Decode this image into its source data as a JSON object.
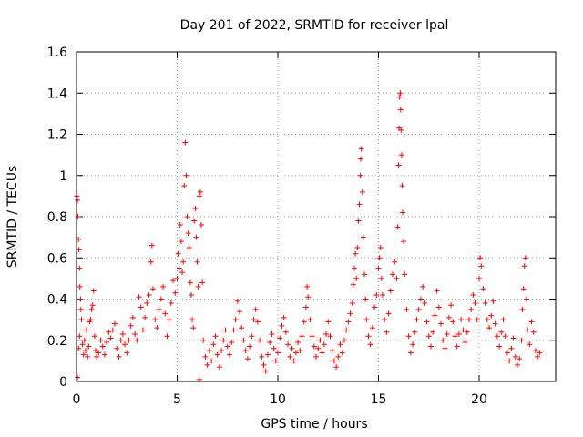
{
  "chart_data": {
    "type": "scatter",
    "title": "Day 201 of 2022, SRMTID for receiver lpal",
    "xlabel": "GPS time / hours",
    "ylabel": "SRMTID / TECUs",
    "xlim": [
      0,
      23.8
    ],
    "ylim": [
      0,
      1.6
    ],
    "xticks": [
      0,
      5,
      10,
      15,
      20
    ],
    "xtick_labels": [
      "0",
      "5",
      "10",
      "15",
      "20"
    ],
    "yticks": [
      0,
      0.2,
      0.4,
      0.6,
      0.8,
      1,
      1.2,
      1.4,
      1.6
    ],
    "ytick_labels": [
      "0",
      "0.2",
      "0.4",
      "0.6",
      "0.8",
      "1",
      "1.2",
      "1.4",
      "1.6"
    ],
    "grid": true,
    "marker": "+",
    "marker_color": "#ff0000",
    "series": [
      {
        "name": "SRMTID",
        "points": [
          [
            0.02,
            0.9
          ],
          [
            0.05,
            0.88
          ],
          [
            0.07,
            0.8
          ],
          [
            0.1,
            0.69
          ],
          [
            0.12,
            0.64
          ],
          [
            0.15,
            0.55
          ],
          [
            0.17,
            0.46
          ],
          [
            0.2,
            0.4
          ],
          [
            0.22,
            0.35
          ],
          [
            0.25,
            0.3
          ],
          [
            0.05,
            0.02
          ],
          [
            0.1,
            0.16
          ],
          [
            0.15,
            0.22
          ],
          [
            0.3,
            0.18
          ],
          [
            0.35,
            0.13
          ],
          [
            0.4,
            0.2
          ],
          [
            0.45,
            0.15
          ],
          [
            0.5,
            0.25
          ],
          [
            0.55,
            0.12
          ],
          [
            0.6,
            0.17
          ],
          [
            0.65,
            0.29
          ],
          [
            0.7,
            0.3
          ],
          [
            0.75,
            0.35
          ],
          [
            0.8,
            0.37
          ],
          [
            0.85,
            0.44
          ],
          [
            0.9,
            0.22
          ],
          [
            0.95,
            0.15
          ],
          [
            1.0,
            0.12
          ],
          [
            1.1,
            0.14
          ],
          [
            1.2,
            0.2
          ],
          [
            1.3,
            0.17
          ],
          [
            1.4,
            0.13
          ],
          [
            1.5,
            0.19
          ],
          [
            1.6,
            0.24
          ],
          [
            1.7,
            0.21
          ],
          [
            1.8,
            0.25
          ],
          [
            1.9,
            0.28
          ],
          [
            2.0,
            0.16
          ],
          [
            2.1,
            0.12
          ],
          [
            2.2,
            0.2
          ],
          [
            2.3,
            0.23
          ],
          [
            2.4,
            0.18
          ],
          [
            2.5,
            0.14
          ],
          [
            2.6,
            0.2
          ],
          [
            2.7,
            0.27
          ],
          [
            2.8,
            0.31
          ],
          [
            2.9,
            0.23
          ],
          [
            3.0,
            0.2
          ],
          [
            3.1,
            0.41
          ],
          [
            3.2,
            0.36
          ],
          [
            3.3,
            0.25
          ],
          [
            3.4,
            0.31
          ],
          [
            3.5,
            0.38
          ],
          [
            3.6,
            0.42
          ],
          [
            3.7,
            0.58
          ],
          [
            3.75,
            0.66
          ],
          [
            3.8,
            0.45
          ],
          [
            3.9,
            0.3
          ],
          [
            4.0,
            0.26
          ],
          [
            4.1,
            0.35
          ],
          [
            4.2,
            0.4
          ],
          [
            4.3,
            0.46
          ],
          [
            4.4,
            0.33
          ],
          [
            4.5,
            0.22
          ],
          [
            4.6,
            0.3
          ],
          [
            4.7,
            0.38
          ],
          [
            4.8,
            0.49
          ],
          [
            4.9,
            0.43
          ],
          [
            5.0,
            0.5
          ],
          [
            5.05,
            0.62
          ],
          [
            5.1,
            0.55
          ],
          [
            5.15,
            0.76
          ],
          [
            5.2,
            0.68
          ],
          [
            5.25,
            0.53
          ],
          [
            5.3,
            0.58
          ],
          [
            5.35,
            0.95
          ],
          [
            5.4,
            1.16
          ],
          [
            5.45,
            1.0
          ],
          [
            5.5,
            0.8
          ],
          [
            5.55,
            0.72
          ],
          [
            5.6,
            0.65
          ],
          [
            5.65,
            0.48
          ],
          [
            5.7,
            0.42
          ],
          [
            5.75,
            0.3
          ],
          [
            5.8,
            0.26
          ],
          [
            5.85,
            0.78
          ],
          [
            5.9,
            0.84
          ],
          [
            5.95,
            0.7
          ],
          [
            6.0,
            0.58
          ],
          [
            6.05,
            0.46
          ],
          [
            6.1,
            0.9
          ],
          [
            6.15,
            0.92
          ],
          [
            6.2,
            0.76
          ],
          [
            6.25,
            0.48
          ],
          [
            6.1,
            0.01
          ],
          [
            6.3,
            0.2
          ],
          [
            6.4,
            0.12
          ],
          [
            6.5,
            0.08
          ],
          [
            6.6,
            0.15
          ],
          [
            6.7,
            0.1
          ],
          [
            6.8,
            0.18
          ],
          [
            6.9,
            0.22
          ],
          [
            7.0,
            0.13
          ],
          [
            7.1,
            0.07
          ],
          [
            7.2,
            0.15
          ],
          [
            7.3,
            0.2
          ],
          [
            7.4,
            0.25
          ],
          [
            7.5,
            0.17
          ],
          [
            7.6,
            0.13
          ],
          [
            7.7,
            0.19
          ],
          [
            7.8,
            0.25
          ],
          [
            7.9,
            0.3
          ],
          [
            8.0,
            0.39
          ],
          [
            8.1,
            0.34
          ],
          [
            8.2,
            0.26
          ],
          [
            8.3,
            0.2
          ],
          [
            8.4,
            0.15
          ],
          [
            8.5,
            0.11
          ],
          [
            8.6,
            0.17
          ],
          [
            8.7,
            0.22
          ],
          [
            8.8,
            0.3
          ],
          [
            8.9,
            0.35
          ],
          [
            9.0,
            0.29
          ],
          [
            9.1,
            0.2
          ],
          [
            9.2,
            0.12
          ],
          [
            9.3,
            0.08
          ],
          [
            9.4,
            0.05
          ],
          [
            9.5,
            0.13
          ],
          [
            9.6,
            0.19
          ],
          [
            9.7,
            0.23
          ],
          [
            9.8,
            0.16
          ],
          [
            9.9,
            0.1
          ],
          [
            10.0,
            0.14
          ],
          [
            10.1,
            0.21
          ],
          [
            10.2,
            0.27
          ],
          [
            10.3,
            0.31
          ],
          [
            10.4,
            0.24
          ],
          [
            10.5,
            0.18
          ],
          [
            10.6,
            0.12
          ],
          [
            10.7,
            0.16
          ],
          [
            10.8,
            0.1
          ],
          [
            10.9,
            0.14
          ],
          [
            11.0,
            0.19
          ],
          [
            11.1,
            0.15
          ],
          [
            11.2,
            0.22
          ],
          [
            11.3,
            0.29
          ],
          [
            11.4,
            0.36
          ],
          [
            11.45,
            0.46
          ],
          [
            11.5,
            0.41
          ],
          [
            11.6,
            0.3
          ],
          [
            11.7,
            0.22
          ],
          [
            11.8,
            0.17
          ],
          [
            11.9,
            0.12
          ],
          [
            12.0,
            0.16
          ],
          [
            12.1,
            0.2
          ],
          [
            12.2,
            0.14
          ],
          [
            12.3,
            0.18
          ],
          [
            12.4,
            0.23
          ],
          [
            12.5,
            0.29
          ],
          [
            12.6,
            0.22
          ],
          [
            12.7,
            0.15
          ],
          [
            12.8,
            0.1
          ],
          [
            12.9,
            0.07
          ],
          [
            13.0,
            0.12
          ],
          [
            13.1,
            0.18
          ],
          [
            13.2,
            0.14
          ],
          [
            13.3,
            0.2
          ],
          [
            13.4,
            0.25
          ],
          [
            13.5,
            0.29
          ],
          [
            13.6,
            0.33
          ],
          [
            13.7,
            0.38
          ],
          [
            13.75,
            0.47
          ],
          [
            13.8,
            0.55
          ],
          [
            13.85,
            0.62
          ],
          [
            13.9,
            0.5
          ],
          [
            13.95,
            0.65
          ],
          [
            14.0,
            0.78
          ],
          [
            14.05,
            0.86
          ],
          [
            14.1,
            1.0
          ],
          [
            14.12,
            1.08
          ],
          [
            14.15,
            1.13
          ],
          [
            14.2,
            0.92
          ],
          [
            14.25,
            0.7
          ],
          [
            14.3,
            0.52
          ],
          [
            14.35,
            0.4
          ],
          [
            14.4,
            0.3
          ],
          [
            14.5,
            0.22
          ],
          [
            14.6,
            0.18
          ],
          [
            14.7,
            0.26
          ],
          [
            14.8,
            0.36
          ],
          [
            14.9,
            0.42
          ],
          [
            15.0,
            0.55
          ],
          [
            15.05,
            0.6
          ],
          [
            15.1,
            0.65
          ],
          [
            15.15,
            0.5
          ],
          [
            15.2,
            0.42
          ],
          [
            15.3,
            0.3
          ],
          [
            15.4,
            0.24
          ],
          [
            15.5,
            0.33
          ],
          [
            15.6,
            0.44
          ],
          [
            15.7,
            0.52
          ],
          [
            15.8,
            0.58
          ],
          [
            15.9,
            0.5
          ],
          [
            15.95,
            0.75
          ],
          [
            16.0,
            1.05
          ],
          [
            16.02,
            1.23
          ],
          [
            16.05,
            1.38
          ],
          [
            16.08,
            1.4
          ],
          [
            16.1,
            1.32
          ],
          [
            16.12,
            1.22
          ],
          [
            16.15,
            1.1
          ],
          [
            16.18,
            0.95
          ],
          [
            16.2,
            0.82
          ],
          [
            16.25,
            0.68
          ],
          [
            16.3,
            0.52
          ],
          [
            16.4,
            0.35
          ],
          [
            16.5,
            0.22
          ],
          [
            16.6,
            0.14
          ],
          [
            16.7,
            0.18
          ],
          [
            16.8,
            0.24
          ],
          [
            16.9,
            0.3
          ],
          [
            17.0,
            0.35
          ],
          [
            17.1,
            0.4
          ],
          [
            17.2,
            0.46
          ],
          [
            17.3,
            0.38
          ],
          [
            17.4,
            0.29
          ],
          [
            17.5,
            0.22
          ],
          [
            17.6,
            0.17
          ],
          [
            17.7,
            0.24
          ],
          [
            17.8,
            0.32
          ],
          [
            17.9,
            0.44
          ],
          [
            18.0,
            0.36
          ],
          [
            18.1,
            0.28
          ],
          [
            18.2,
            0.2
          ],
          [
            18.3,
            0.16
          ],
          [
            18.4,
            0.23
          ],
          [
            18.5,
            0.31
          ],
          [
            18.6,
            0.37
          ],
          [
            18.7,
            0.29
          ],
          [
            18.8,
            0.22
          ],
          [
            18.9,
            0.17
          ],
          [
            19.0,
            0.23
          ],
          [
            19.1,
            0.3
          ],
          [
            19.2,
            0.25
          ],
          [
            19.3,
            0.19
          ],
          [
            19.4,
            0.24
          ],
          [
            19.5,
            0.3
          ],
          [
            19.6,
            0.35
          ],
          [
            19.7,
            0.42
          ],
          [
            19.8,
            0.38
          ],
          [
            19.9,
            0.3
          ],
          [
            20.0,
            0.5
          ],
          [
            20.05,
            0.6
          ],
          [
            20.1,
            0.56
          ],
          [
            20.2,
            0.45
          ],
          [
            20.3,
            0.38
          ],
          [
            20.4,
            0.3
          ],
          [
            20.5,
            0.26
          ],
          [
            20.6,
            0.32
          ],
          [
            20.7,
            0.39
          ],
          [
            20.8,
            0.28
          ],
          [
            20.9,
            0.22
          ],
          [
            21.0,
            0.17
          ],
          [
            21.1,
            0.24
          ],
          [
            21.2,
            0.3
          ],
          [
            21.3,
            0.22
          ],
          [
            21.4,
            0.14
          ],
          [
            21.5,
            0.1
          ],
          [
            21.6,
            0.16
          ],
          [
            21.7,
            0.21
          ],
          [
            21.8,
            0.12
          ],
          [
            21.9,
            0.08
          ],
          [
            22.0,
            0.11
          ],
          [
            22.1,
            0.2
          ],
          [
            22.15,
            0.35
          ],
          [
            22.2,
            0.45
          ],
          [
            22.25,
            0.56
          ],
          [
            22.3,
            0.6
          ],
          [
            22.35,
            0.4
          ],
          [
            22.4,
            0.25
          ],
          [
            22.5,
            0.18
          ],
          [
            22.6,
            0.29
          ],
          [
            22.7,
            0.24
          ],
          [
            22.8,
            0.15
          ],
          [
            22.9,
            0.12
          ],
          [
            23.0,
            0.14
          ]
        ]
      }
    ]
  }
}
